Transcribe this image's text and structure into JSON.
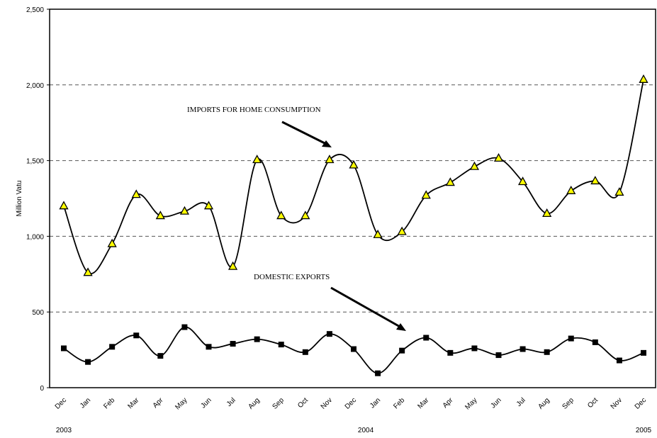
{
  "chart_data": {
    "type": "line",
    "y_axis_label": "Million Vatu",
    "categories": [
      "Dec",
      "Jan",
      "Feb",
      "Mar",
      "Apr",
      "May",
      "Jun",
      "Jul",
      "Aug",
      "Sep",
      "Oct",
      "Nov",
      "Dec",
      "Jan",
      "Feb",
      "Mar",
      "Apr",
      "May",
      "Jun",
      "Jul",
      "Aug",
      "Sep",
      "Oct",
      "Nov",
      "Dec"
    ],
    "year_labels": [
      "2003",
      "2004",
      "2005"
    ],
    "series": [
      {
        "name": "IMPORTS FOR HOME CONSUMPTION",
        "color": "#ffff00",
        "marker": "triangle",
        "values": [
          1200,
          760,
          950,
          1275,
          1135,
          1165,
          1200,
          800,
          1505,
          1135,
          1135,
          1505,
          1470,
          1010,
          1030,
          1270,
          1355,
          1460,
          1515,
          1360,
          1150,
          1300,
          1365,
          1290,
          2035
        ]
      },
      {
        "name": "DOMESTIC EXPORTS",
        "color": "#000000",
        "marker": "square",
        "values": [
          260,
          170,
          270,
          345,
          210,
          400,
          270,
          290,
          320,
          285,
          235,
          355,
          255,
          95,
          245,
          330,
          230,
          260,
          215,
          255,
          235,
          325,
          300,
          180,
          230
        ]
      }
    ],
    "ylim": [
      0,
      2500
    ],
    "yticks": [
      0,
      500,
      {
        "value": 1000,
        "label": "1,000"
      },
      {
        "value": 1500,
        "label": "1,500"
      },
      {
        "value": 2000,
        "label": "2,000"
      },
      {
        "value": 2500,
        "label": "2,500"
      }
    ],
    "grid": true
  }
}
